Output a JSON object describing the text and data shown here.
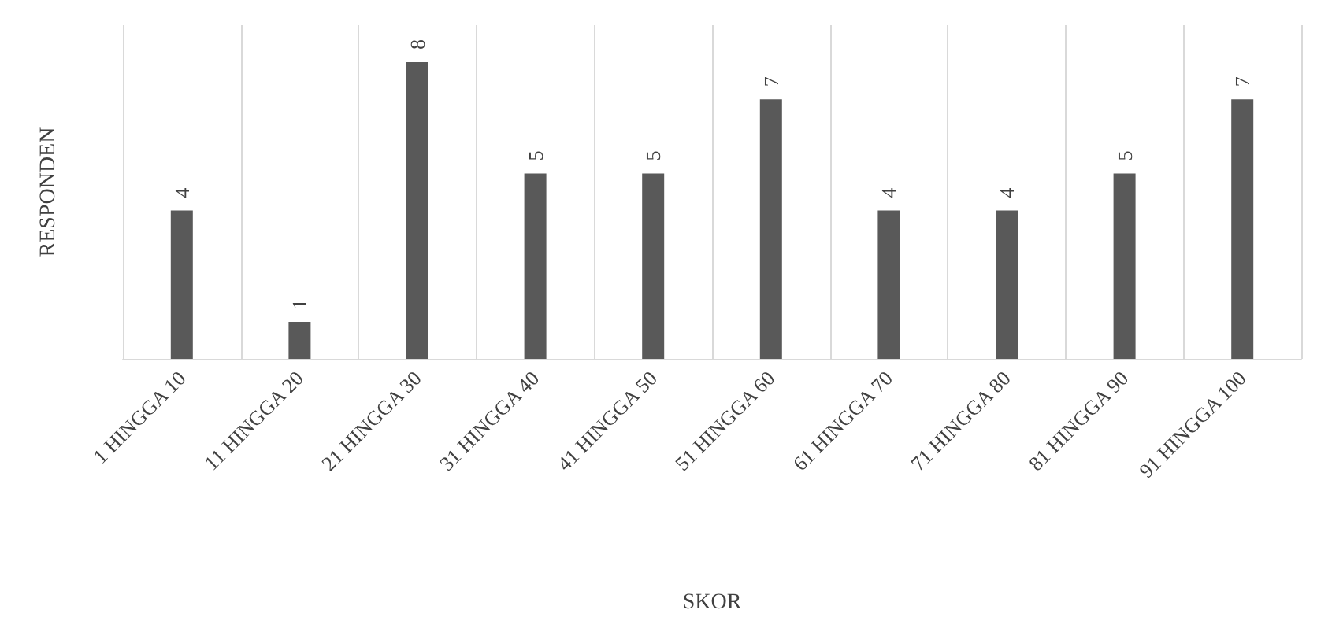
{
  "chart_data": {
    "type": "bar",
    "xlabel": "SKOR",
    "ylabel": "RESPONDEN",
    "categories": [
      "1 HINGGA 10",
      "11 HINGGA 20",
      "21 HINGGA 30",
      "31 HINGGA 40",
      "41 HINGGA 50",
      "51 HINGGA 60",
      "61 HINGGA 70",
      "71 HINGGA 80",
      "81 HINGGA 90",
      "91 HINGGA 100"
    ],
    "values": [
      4,
      1,
      8,
      5,
      5,
      7,
      4,
      4,
      5,
      7
    ],
    "color": "#595959",
    "ylim": [
      0,
      9
    ],
    "data_labels": true,
    "grid": "x",
    "tick_labels": "x"
  }
}
